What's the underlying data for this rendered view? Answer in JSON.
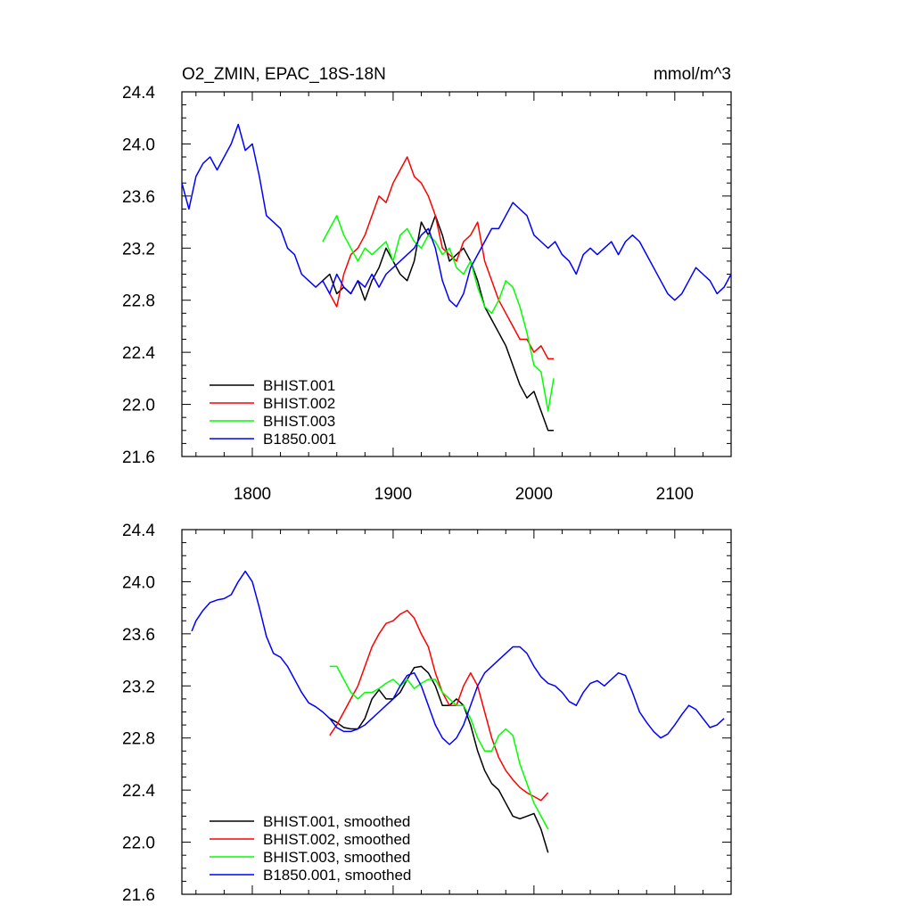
{
  "chart_data": [
    {
      "type": "line",
      "title": "O2_ZMIN, EPAC_18S-18N",
      "units": "mmol/m^3",
      "xlim": [
        1750,
        2140
      ],
      "ylim": [
        21.6,
        24.4
      ],
      "x_ticks": [
        1800,
        1900,
        2000,
        2100
      ],
      "x_tick_labels": [
        "1800",
        "1900",
        "2000",
        "2100"
      ],
      "y_ticks": [
        21.6,
        22.0,
        22.4,
        22.8,
        23.2,
        23.6,
        24.0,
        24.4
      ],
      "y_tick_labels": [
        "21.6",
        "22.0",
        "22.4",
        "22.8",
        "23.2",
        "23.6",
        "24.0",
        "24.4"
      ],
      "legend_position": "bottom-left",
      "series": [
        {
          "name": "BHIST.001",
          "color": "#000000",
          "x": [
            1850,
            1855,
            1860,
            1865,
            1870,
            1875,
            1880,
            1885,
            1890,
            1895,
            1900,
            1905,
            1910,
            1915,
            1920,
            1925,
            1930,
            1935,
            1940,
            1945,
            1950,
            1955,
            1960,
            1965,
            1970,
            1975,
            1980,
            1985,
            1990,
            1995,
            2000,
            2005,
            2010,
            2014
          ],
          "y": [
            22.95,
            23.0,
            22.85,
            22.9,
            22.85,
            22.95,
            22.8,
            22.95,
            23.05,
            23.2,
            23.1,
            23.0,
            22.95,
            23.1,
            23.4,
            23.3,
            23.45,
            23.3,
            23.1,
            23.15,
            23.2,
            23.1,
            22.95,
            22.75,
            22.65,
            22.55,
            22.45,
            22.3,
            22.15,
            22.05,
            22.1,
            21.95,
            21.8,
            21.8
          ]
        },
        {
          "name": "BHIST.002",
          "color": "#ff0000",
          "x": [
            1855,
            1860,
            1865,
            1870,
            1875,
            1880,
            1885,
            1890,
            1895,
            1900,
            1905,
            1910,
            1915,
            1920,
            1925,
            1930,
            1935,
            1940,
            1945,
            1950,
            1955,
            1960,
            1965,
            1970,
            1975,
            1980,
            1985,
            1990,
            1995,
            2000,
            2005,
            2010,
            2014
          ],
          "y": [
            22.85,
            22.75,
            23.0,
            23.15,
            23.2,
            23.3,
            23.45,
            23.6,
            23.55,
            23.7,
            23.8,
            23.9,
            23.75,
            23.7,
            23.6,
            23.45,
            23.2,
            23.15,
            23.1,
            23.25,
            23.3,
            23.4,
            23.1,
            22.95,
            22.8,
            22.7,
            22.6,
            22.5,
            22.5,
            22.4,
            22.45,
            22.35,
            22.35
          ]
        },
        {
          "name": "BHIST.003",
          "color": "#00ff00",
          "x": [
            1850,
            1855,
            1860,
            1865,
            1870,
            1875,
            1880,
            1885,
            1890,
            1895,
            1900,
            1905,
            1910,
            1915,
            1920,
            1925,
            1930,
            1935,
            1940,
            1945,
            1950,
            1955,
            1960,
            1965,
            1970,
            1975,
            1980,
            1985,
            1990,
            1995,
            2000,
            2005,
            2010,
            2014
          ],
          "y": [
            23.25,
            23.35,
            23.45,
            23.3,
            23.2,
            23.1,
            23.2,
            23.15,
            23.2,
            23.25,
            23.1,
            23.3,
            23.35,
            23.25,
            23.2,
            23.3,
            23.25,
            23.15,
            23.2,
            23.05,
            23.0,
            23.1,
            22.9,
            22.75,
            22.7,
            22.8,
            22.95,
            22.9,
            22.75,
            22.55,
            22.3,
            22.25,
            21.95,
            22.2
          ]
        },
        {
          "name": "B1850.001",
          "color": "#0000ff",
          "x": [
            1750,
            1755,
            1760,
            1765,
            1770,
            1775,
            1780,
            1785,
            1790,
            1795,
            1800,
            1805,
            1810,
            1815,
            1820,
            1825,
            1830,
            1835,
            1840,
            1845,
            1850,
            1855,
            1860,
            1865,
            1870,
            1875,
            1880,
            1885,
            1890,
            1895,
            1900,
            1905,
            1910,
            1915,
            1920,
            1925,
            1930,
            1935,
            1940,
            1945,
            1950,
            1955,
            1960,
            1965,
            1970,
            1975,
            1980,
            1985,
            1990,
            1995,
            2000,
            2005,
            2010,
            2015,
            2020,
            2025,
            2030,
            2035,
            2040,
            2045,
            2050,
            2055,
            2060,
            2065,
            2070,
            2075,
            2080,
            2085,
            2090,
            2095,
            2100,
            2105,
            2110,
            2115,
            2120,
            2125,
            2130,
            2135,
            2140
          ],
          "y": [
            23.7,
            23.5,
            23.75,
            23.85,
            23.9,
            23.8,
            23.9,
            24.0,
            24.15,
            23.95,
            24.0,
            23.75,
            23.45,
            23.4,
            23.35,
            23.2,
            23.15,
            23.0,
            22.95,
            22.9,
            22.95,
            22.85,
            23.0,
            22.9,
            22.85,
            22.95,
            22.9,
            23.0,
            22.9,
            23.0,
            23.05,
            23.1,
            23.15,
            23.2,
            23.3,
            23.35,
            23.2,
            22.95,
            22.8,
            22.75,
            22.85,
            23.05,
            23.15,
            23.25,
            23.35,
            23.35,
            23.45,
            23.55,
            23.5,
            23.45,
            23.3,
            23.25,
            23.2,
            23.25,
            23.15,
            23.1,
            23.0,
            23.15,
            23.2,
            23.15,
            23.2,
            23.25,
            23.15,
            23.25,
            23.3,
            23.25,
            23.15,
            23.05,
            22.95,
            22.85,
            22.8,
            22.85,
            22.95,
            23.05,
            23.0,
            22.95,
            22.85,
            22.9,
            23.0
          ]
        }
      ]
    },
    {
      "type": "line",
      "xlim": [
        1750,
        2140
      ],
      "ylim": [
        21.6,
        24.4
      ],
      "x_ticks": [
        1800,
        1900,
        2000,
        2100
      ],
      "y_ticks": [
        21.6,
        22.0,
        22.4,
        22.8,
        23.2,
        23.6,
        24.0,
        24.4
      ],
      "y_tick_labels": [
        "21.6",
        "22.0",
        "22.4",
        "22.8",
        "23.2",
        "23.6",
        "24.0",
        "24.4"
      ],
      "legend_position": "bottom-left",
      "series": [
        {
          "name": "BHIST.001, smoothed",
          "color": "#000000",
          "x": [
            1855,
            1860,
            1865,
            1870,
            1875,
            1880,
            1885,
            1890,
            1895,
            1900,
            1905,
            1910,
            1915,
            1920,
            1925,
            1930,
            1935,
            1940,
            1945,
            1950,
            1955,
            1960,
            1965,
            1970,
            1975,
            1980,
            1985,
            1990,
            1995,
            2000,
            2005,
            2010
          ],
          "y": [
            22.95,
            22.92,
            22.88,
            22.87,
            22.87,
            22.95,
            23.1,
            23.17,
            23.1,
            23.1,
            23.15,
            23.25,
            23.34,
            23.35,
            23.3,
            23.2,
            23.05,
            23.05,
            23.1,
            23.05,
            22.9,
            22.7,
            22.55,
            22.45,
            22.4,
            22.3,
            22.2,
            22.18,
            22.2,
            22.22,
            22.1,
            21.92
          ]
        },
        {
          "name": "BHIST.002, smoothed",
          "color": "#ff0000",
          "x": [
            1855,
            1860,
            1865,
            1870,
            1875,
            1880,
            1885,
            1890,
            1895,
            1900,
            1905,
            1910,
            1915,
            1920,
            1925,
            1930,
            1935,
            1940,
            1945,
            1950,
            1955,
            1960,
            1965,
            1970,
            1975,
            1980,
            1985,
            1990,
            1995,
            2000,
            2005,
            2010
          ],
          "y": [
            22.82,
            22.9,
            23.0,
            23.1,
            23.2,
            23.35,
            23.5,
            23.6,
            23.68,
            23.7,
            23.75,
            23.78,
            23.72,
            23.6,
            23.5,
            23.3,
            23.15,
            23.05,
            23.05,
            23.2,
            23.3,
            23.2,
            23.0,
            22.8,
            22.65,
            22.55,
            22.48,
            22.42,
            22.38,
            22.35,
            22.32,
            22.38
          ]
        },
        {
          "name": "BHIST.003, smoothed",
          "color": "#00ff00",
          "x": [
            1855,
            1860,
            1865,
            1870,
            1875,
            1880,
            1885,
            1890,
            1895,
            1900,
            1905,
            1910,
            1915,
            1920,
            1925,
            1930,
            1935,
            1940,
            1945,
            1950,
            1955,
            1960,
            1965,
            1970,
            1975,
            1980,
            1985,
            1990,
            1995,
            2000,
            2005,
            2010
          ],
          "y": [
            23.35,
            23.35,
            23.25,
            23.15,
            23.1,
            23.15,
            23.15,
            23.18,
            23.22,
            23.25,
            23.2,
            23.25,
            23.18,
            23.22,
            23.25,
            23.25,
            23.15,
            23.1,
            23.05,
            23.05,
            22.95,
            22.8,
            22.7,
            22.7,
            22.82,
            22.87,
            22.82,
            22.6,
            22.45,
            22.3,
            22.2,
            22.1
          ]
        },
        {
          "name": "B1850.001, smoothed",
          "color": "#0000ff",
          "x": [
            1757,
            1760,
            1765,
            1770,
            1775,
            1780,
            1785,
            1790,
            1795,
            1800,
            1805,
            1810,
            1815,
            1820,
            1825,
            1830,
            1835,
            1840,
            1845,
            1850,
            1855,
            1860,
            1865,
            1870,
            1875,
            1880,
            1885,
            1890,
            1895,
            1900,
            1905,
            1910,
            1915,
            1920,
            1925,
            1930,
            1935,
            1940,
            1945,
            1950,
            1955,
            1960,
            1965,
            1970,
            1975,
            1980,
            1985,
            1990,
            1995,
            2000,
            2005,
            2010,
            2015,
            2020,
            2025,
            2030,
            2035,
            2040,
            2045,
            2050,
            2055,
            2060,
            2065,
            2070,
            2075,
            2080,
            2085,
            2090,
            2095,
            2100,
            2105,
            2110,
            2115,
            2120,
            2125,
            2130,
            2135
          ],
          "y": [
            23.62,
            23.7,
            23.78,
            23.84,
            23.86,
            23.87,
            23.9,
            24.0,
            24.08,
            24.0,
            23.8,
            23.58,
            23.45,
            23.42,
            23.35,
            23.25,
            23.15,
            23.07,
            23.04,
            23.0,
            22.95,
            22.88,
            22.85,
            22.85,
            22.87,
            22.9,
            22.95,
            23.0,
            23.05,
            23.1,
            23.2,
            23.28,
            23.3,
            23.2,
            23.05,
            22.9,
            22.8,
            22.75,
            22.8,
            22.9,
            23.05,
            23.2,
            23.3,
            23.35,
            23.4,
            23.45,
            23.5,
            23.5,
            23.45,
            23.35,
            23.27,
            23.22,
            23.2,
            23.15,
            23.08,
            23.05,
            23.15,
            23.22,
            23.24,
            23.2,
            23.25,
            23.3,
            23.28,
            23.15,
            23.0,
            22.92,
            22.85,
            22.8,
            22.83,
            22.9,
            22.98,
            23.05,
            23.02,
            22.95,
            22.88,
            22.9,
            22.95
          ]
        }
      ]
    }
  ]
}
